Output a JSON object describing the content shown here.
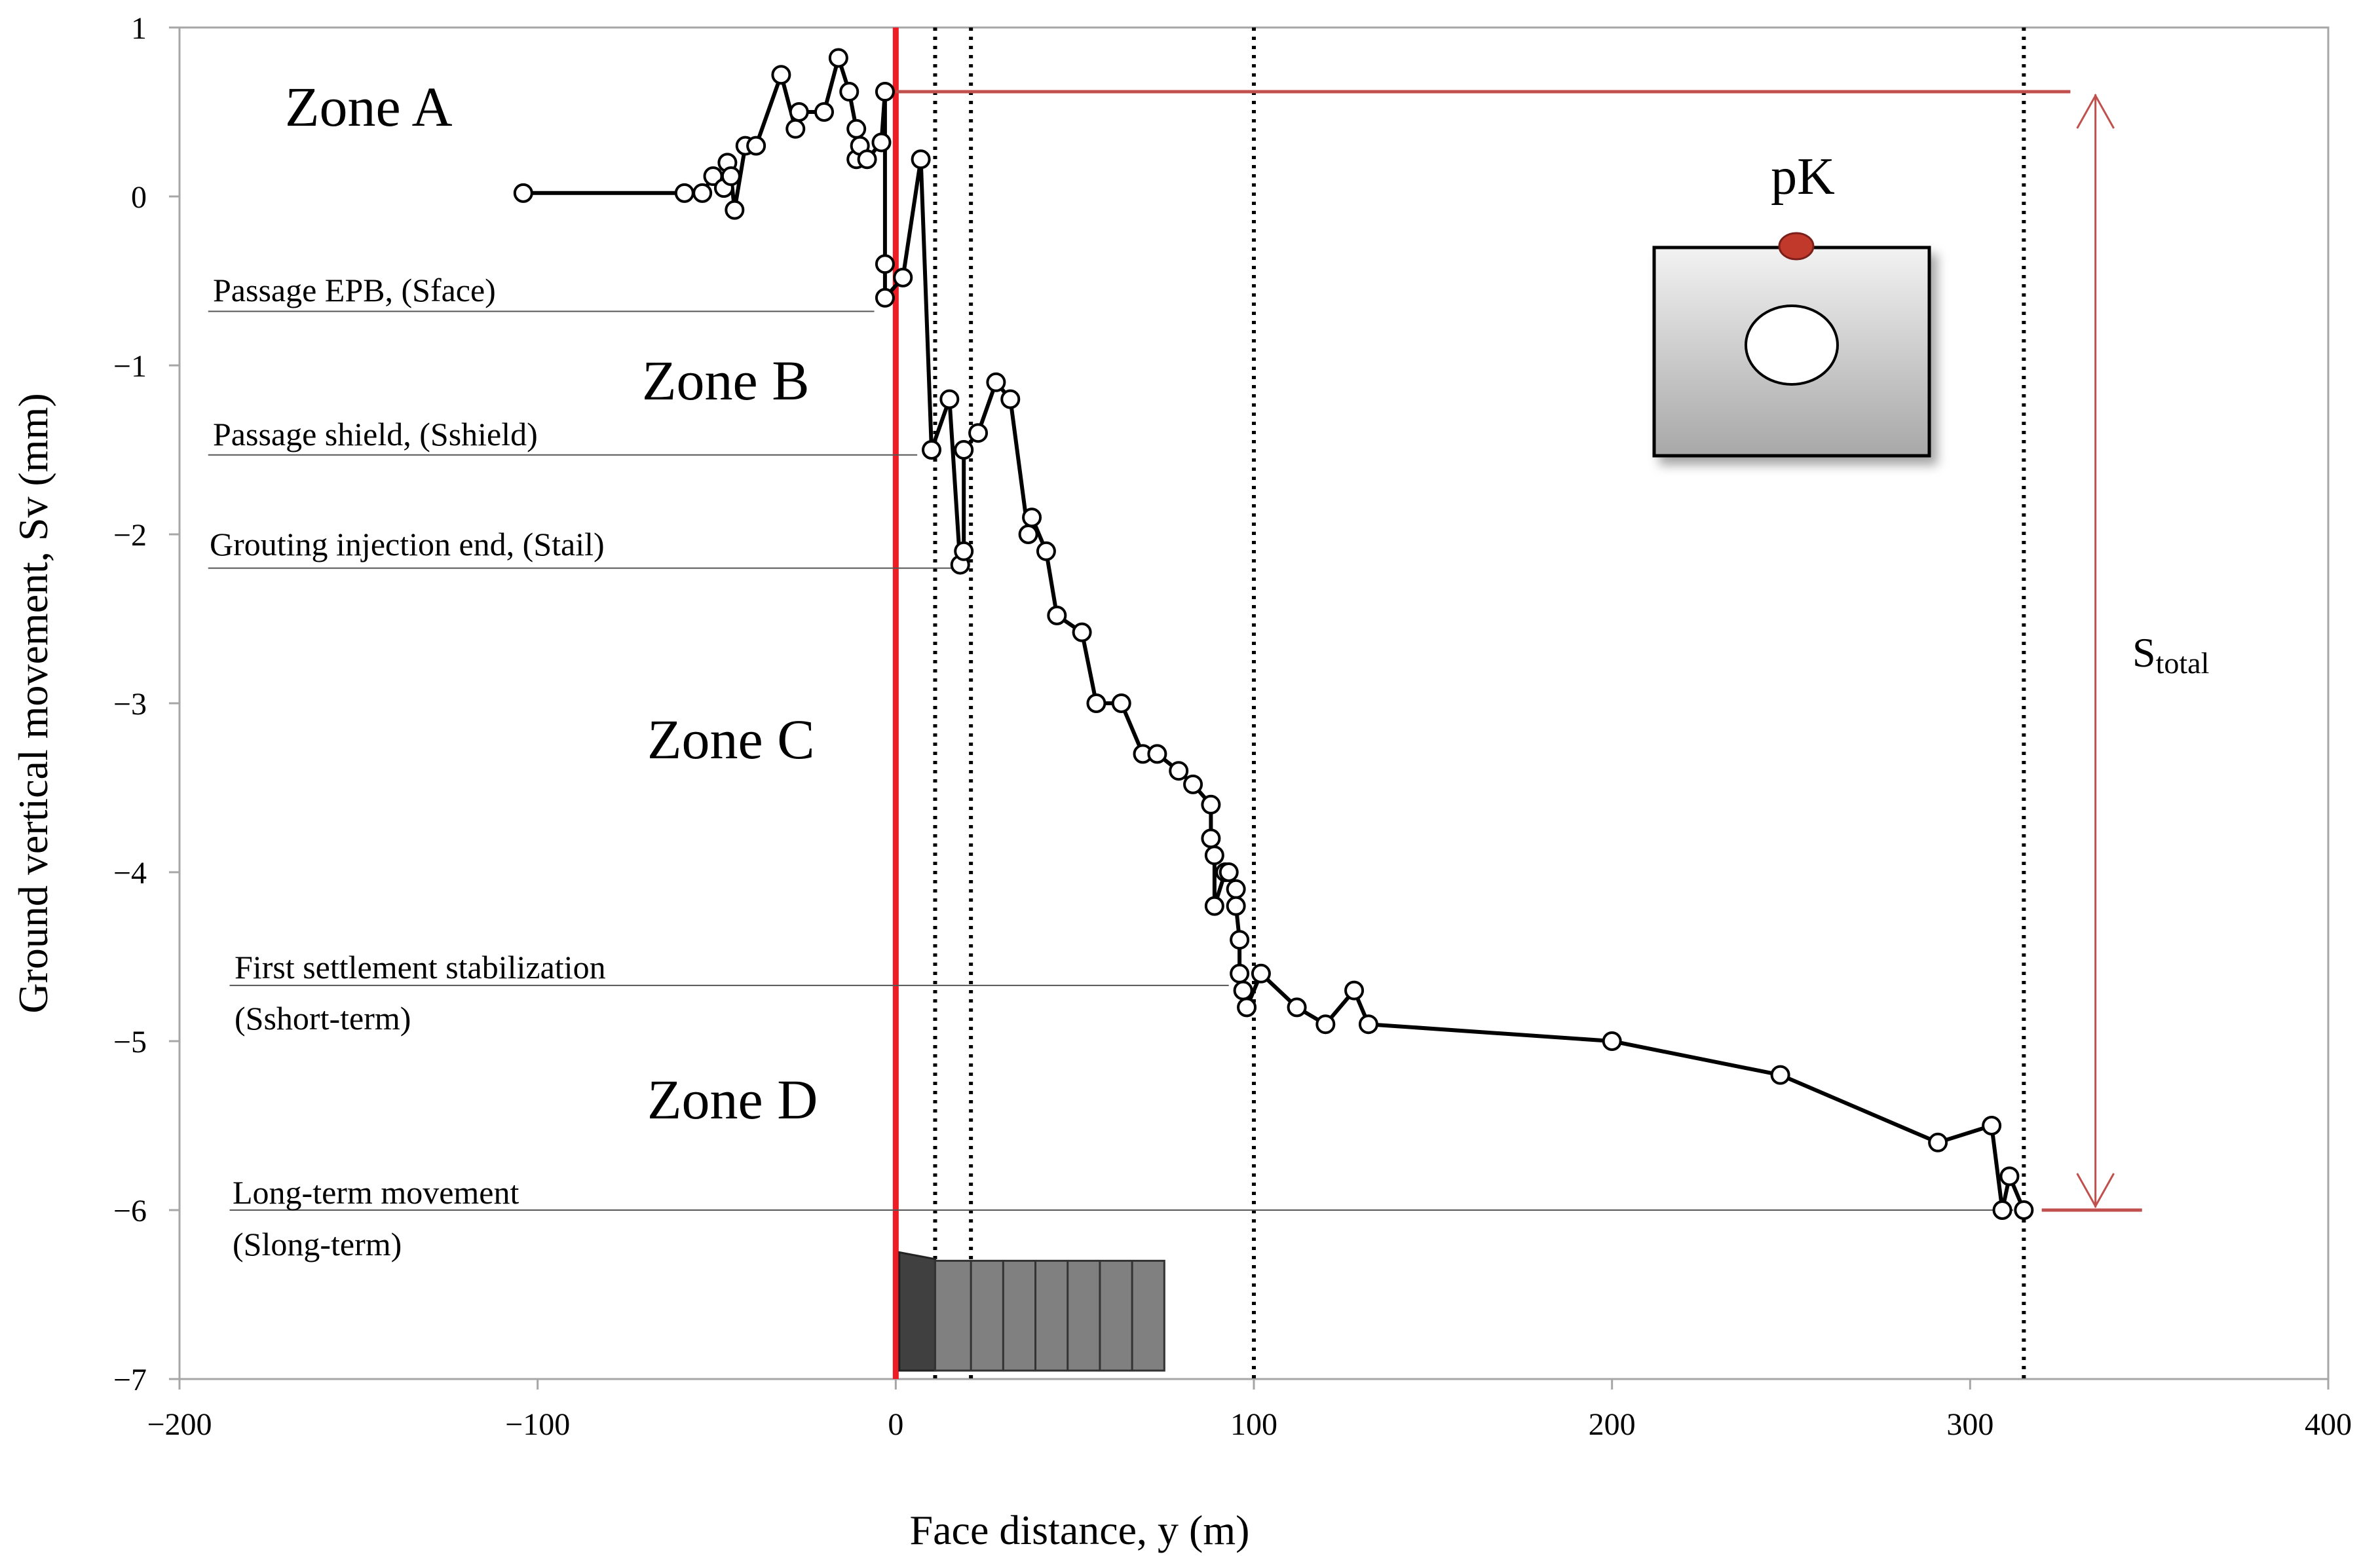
{
  "chart_data": {
    "type": "scatter",
    "title": "",
    "xlabel": "Face distance, y (m)",
    "ylabel": "Ground vertical movement, Sv (mm)",
    "xlim": [
      -200,
      400
    ],
    "ylim": [
      -7,
      1
    ],
    "x_ticks": [
      -200,
      -100,
      0,
      100,
      200,
      300,
      400
    ],
    "y_ticks": [
      1,
      0,
      -1,
      -2,
      -3,
      -4,
      -5,
      -6,
      -7
    ],
    "x_tick_labels": [
      "−200",
      "−100",
      "0",
      "100",
      "200",
      "300",
      "400"
    ],
    "y_tick_labels": [
      "1",
      "0",
      "−1",
      "−2",
      "−3",
      "−4",
      "−5",
      "−6",
      "−7"
    ],
    "grid": false,
    "series": [
      {
        "marker": "open-circle",
        "line": true,
        "color": "#000000",
        "points": [
          [
            -104,
            0.02
          ],
          [
            -59,
            0.02
          ],
          [
            -54,
            0.02
          ],
          [
            -51,
            0.12
          ],
          [
            -48,
            0.05
          ],
          [
            -47,
            0.2
          ],
          [
            -46,
            0.12
          ],
          [
            -45,
            -0.08
          ],
          [
            -42,
            0.3
          ],
          [
            -39,
            0.3
          ],
          [
            -32,
            0.72
          ],
          [
            -28,
            0.4
          ],
          [
            -27,
            0.5
          ],
          [
            -20,
            0.5
          ],
          [
            -16,
            0.82
          ],
          [
            -13,
            0.62
          ],
          [
            -11,
            0.4
          ],
          [
            -11,
            0.22
          ],
          [
            -10,
            0.3
          ],
          [
            -8,
            0.22
          ],
          [
            -4,
            0.32
          ],
          [
            -3,
            0.62
          ],
          [
            -3,
            -0.4
          ],
          [
            -3,
            -0.6
          ],
          [
            2,
            -0.48
          ],
          [
            7,
            0.22
          ],
          [
            10,
            -1.5
          ],
          [
            15,
            -1.2
          ],
          [
            18,
            -2.18
          ],
          [
            19,
            -2.1
          ],
          [
            19,
            -1.5
          ],
          [
            23,
            -1.4
          ],
          [
            28,
            -1.1
          ],
          [
            32,
            -1.2
          ],
          [
            37,
            -2.0
          ],
          [
            38,
            -1.9
          ],
          [
            42,
            -2.1
          ],
          [
            45,
            -2.48
          ],
          [
            52,
            -2.58
          ],
          [
            56,
            -3.0
          ],
          [
            63,
            -3.0
          ],
          [
            69,
            -3.3
          ],
          [
            73,
            -3.3
          ],
          [
            79,
            -3.4
          ],
          [
            83,
            -3.48
          ],
          [
            88,
            -3.6
          ],
          [
            88,
            -3.8
          ],
          [
            89,
            -3.9
          ],
          [
            89,
            -4.2
          ],
          [
            92,
            -4.0
          ],
          [
            93,
            -4.0
          ],
          [
            95,
            -4.1
          ],
          [
            95,
            -4.2
          ],
          [
            96,
            -4.4
          ],
          [
            96,
            -4.6
          ],
          [
            97,
            -4.7
          ],
          [
            98,
            -4.8
          ],
          [
            102,
            -4.6
          ],
          [
            112,
            -4.8
          ],
          [
            120,
            -4.9
          ],
          [
            128,
            -4.7
          ],
          [
            132,
            -4.9
          ],
          [
            200,
            -5.0
          ],
          [
            247,
            -5.2
          ],
          [
            291,
            -5.6
          ],
          [
            306,
            -5.5
          ],
          [
            309,
            -6.0
          ],
          [
            311,
            -5.8
          ],
          [
            315,
            -6.0
          ]
        ]
      }
    ],
    "face_line_x": 0,
    "zone_boundaries_x": [
      11,
      21,
      100,
      315
    ],
    "annotations": {
      "zones": [
        "Zone A",
        "Zone B",
        "Zone C",
        "Zone D"
      ],
      "face": "Passage EPB, (Sface)",
      "shield": "Passage shield, (Sshield)",
      "tail": "Grouting injection end, (Stail)",
      "short_term_1": "First settlement stabilization",
      "short_term_2": "(Sshort-term)",
      "long_term_1": "Long-term movement",
      "long_term_2": "(Slong-term)",
      "stotal_main": "S",
      "stotal_sub": "total",
      "pk": "pK"
    },
    "colors": {
      "face_line": "#ee1c24",
      "total_range": "#c0504d",
      "pk_marker": "#c0392b",
      "tbm_head": "#404040",
      "tbm_body": "#808080"
    }
  }
}
